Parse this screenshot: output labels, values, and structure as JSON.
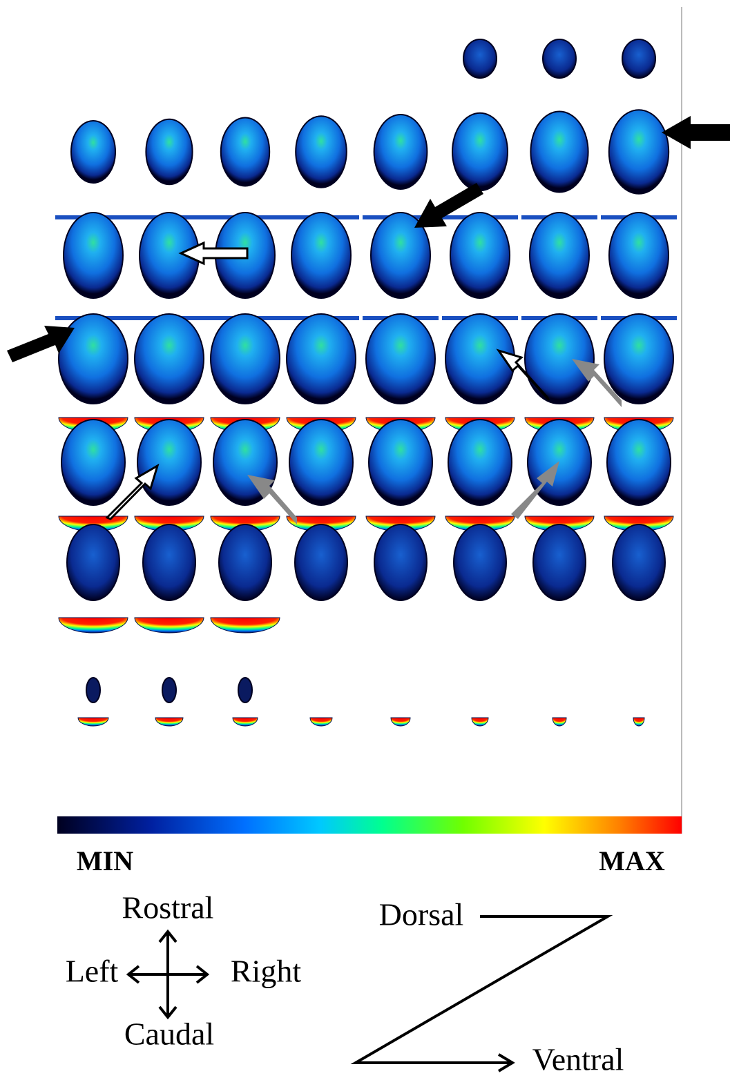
{
  "colorbar": {
    "min_label": "MIN",
    "max_label": "MAX"
  },
  "orientation": {
    "rostral": "Rostral",
    "left": "Left",
    "right": "Right",
    "caudal": "Caudal"
  },
  "slice_order": {
    "start": "Dorsal",
    "end": "Ventral"
  }
}
